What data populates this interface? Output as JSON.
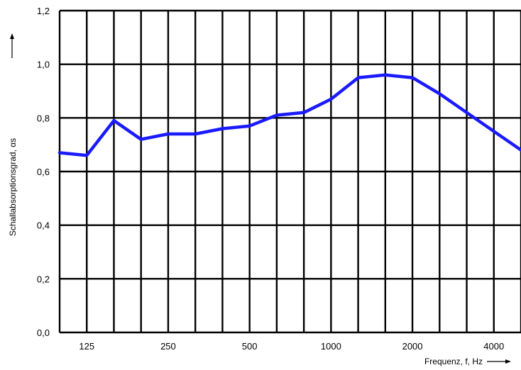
{
  "chart_data": {
    "type": "line",
    "title": "",
    "xlabel": "Frequenz, f, Hz",
    "ylabel": "Schallabsorptionsgrad, αs",
    "xscale": "log (third-octave bands)",
    "grid": true,
    "ylim": [
      0,
      1.2
    ],
    "yticks": [
      "0,0",
      "0,2",
      "0,4",
      "0,6",
      "0,8",
      "1,0",
      "1,2"
    ],
    "xticks": [
      "125",
      "250",
      "500",
      "1000",
      "2000",
      "4000"
    ],
    "series": [
      {
        "color": "#1a1aff",
        "x": [
          100,
          125,
          160,
          200,
          250,
          315,
          400,
          500,
          630,
          800,
          1000,
          1250,
          1600,
          2000,
          2500,
          3150,
          4000,
          5000
        ],
        "y": [
          0.67,
          0.66,
          0.79,
          0.72,
          0.74,
          0.74,
          0.76,
          0.77,
          0.81,
          0.82,
          0.87,
          0.95,
          0.96,
          0.95,
          0.89,
          0.82,
          0.75,
          0.68
        ]
      }
    ]
  }
}
